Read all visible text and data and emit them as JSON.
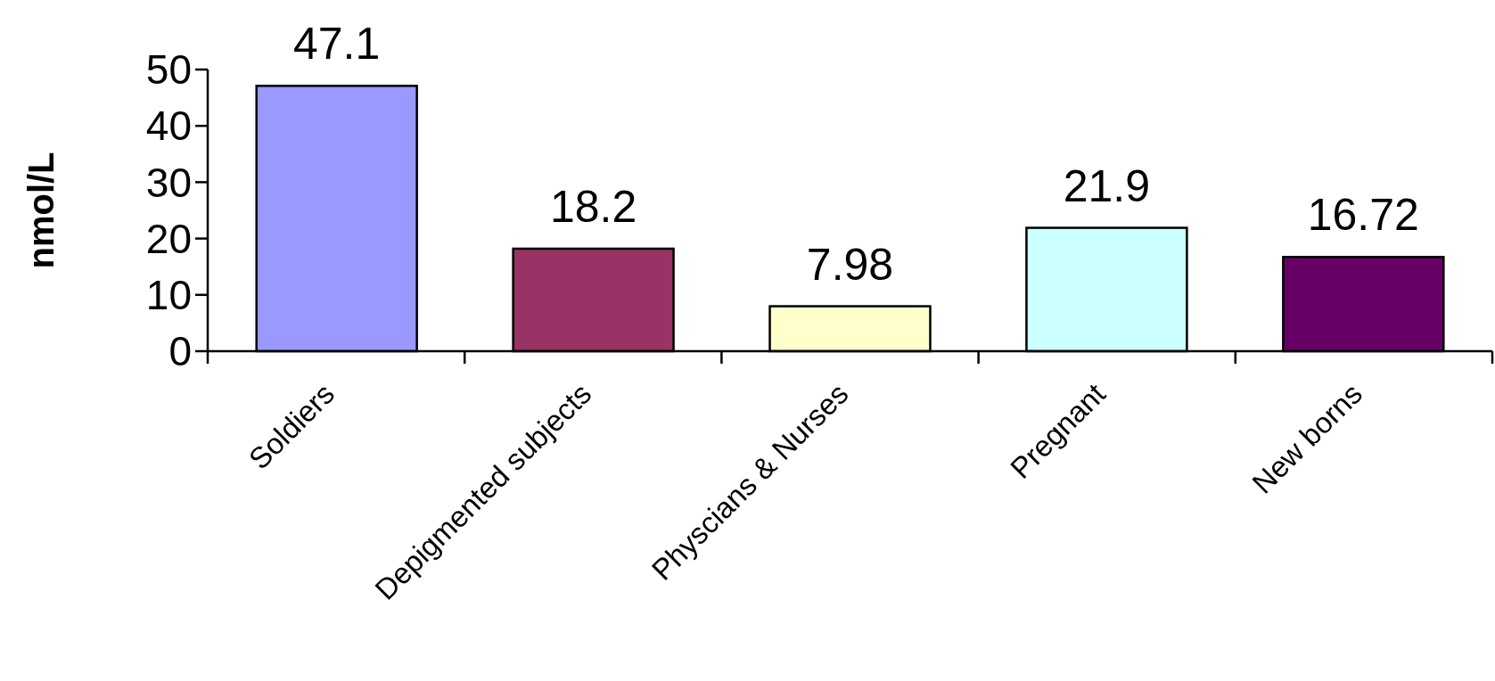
{
  "chart_data": {
    "type": "bar",
    "ylabel": "nmol/L",
    "categories": [
      "Soldiers",
      "Depigmented subjects",
      "Physcians & Nurses",
      "Pregnant",
      "New borns"
    ],
    "values": [
      47.1,
      18.2,
      7.98,
      21.9,
      16.72
    ],
    "colors": [
      "#9999ff",
      "#993366",
      "#ffffcc",
      "#ccffff",
      "#660066"
    ],
    "ylim": [
      0,
      50
    ],
    "yticks": [
      0,
      10,
      20,
      30,
      40,
      50
    ],
    "data_labels": true,
    "grid": false
  }
}
